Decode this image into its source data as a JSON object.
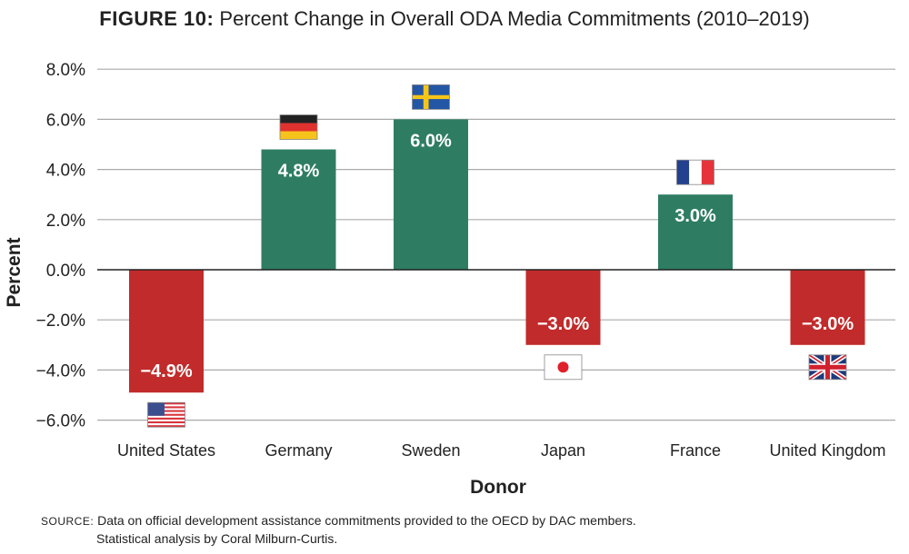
{
  "chart_data": {
    "type": "bar",
    "title_prefix": "FIGURE 10:",
    "title": "Percent Change in Overall ODA Media Commitments (2010–2019)",
    "xlabel": "Donor",
    "ylabel": "Percent",
    "ylim": [
      -6,
      8
    ],
    "yticks": [
      8,
      6,
      4,
      2,
      0,
      -2,
      -4,
      -6
    ],
    "ytick_labels": [
      "8.0%",
      "6.0%",
      "4.0%",
      "2.0%",
      "0.0%",
      "−2.0%",
      "−4.0%",
      "−6.0%"
    ],
    "grid": true,
    "categories": [
      "United States",
      "Germany",
      "Sweden",
      "Japan",
      "France",
      "United Kingdom"
    ],
    "values": [
      -4.9,
      4.8,
      6.0,
      -3.0,
      3.0,
      -3.0
    ],
    "data_labels": [
      "−4.9%",
      "4.8%",
      "6.0%",
      "−3.0%",
      "3.0%",
      "−3.0%"
    ],
    "flags": [
      "us-flag",
      "germany-flag",
      "sweden-flag",
      "japan-flag",
      "france-flag",
      "uk-flag"
    ],
    "colors": {
      "positive": "#2e7d62",
      "negative": "#c22b2b"
    }
  },
  "source": {
    "label": "SOURCE:",
    "line1": "Data on official development assistance commitments provided to the OECD by DAC members.",
    "line2": "Statistical analysis by Coral Milburn-Curtis."
  }
}
